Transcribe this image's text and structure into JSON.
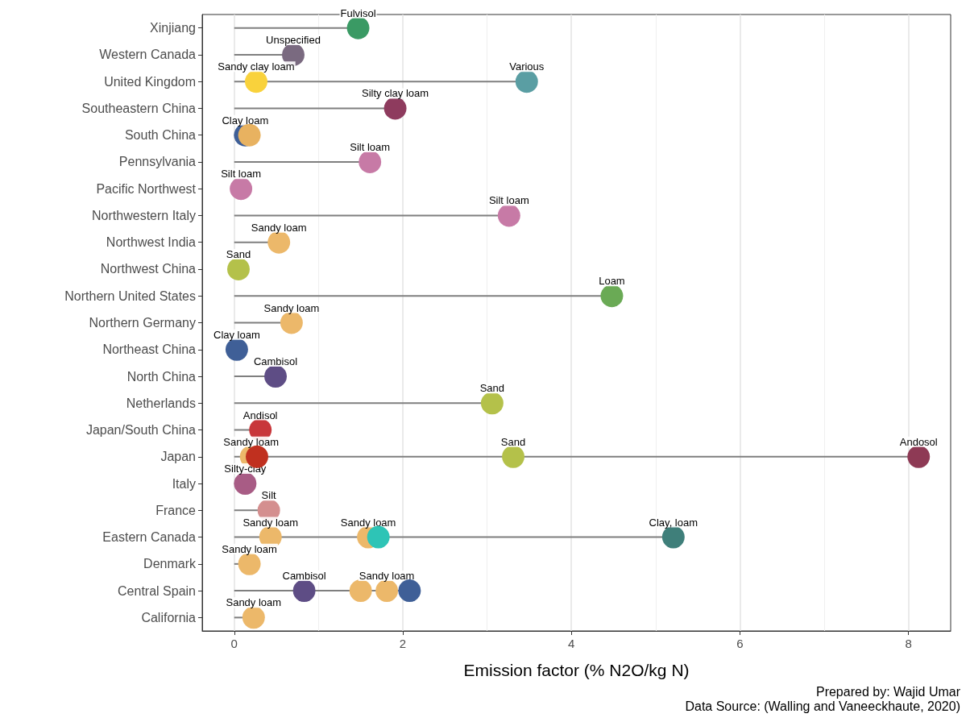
{
  "chart_data": {
    "type": "lollipop",
    "orientation": "horizontal",
    "xlabel": "Emission factor (% N2O/kg N)",
    "categories": [
      "Xinjiang",
      "Western Canada",
      "United Kingdom",
      "Southeastern China",
      "South China",
      "Pennsylvania",
      "Pacific Northwest",
      "Northwestern Italy",
      "Northwest India",
      "Northwest China",
      "Northern United States",
      "Northern Germany",
      "Northeast China",
      "North China",
      "Netherlands",
      "Japan/South China",
      "Japan",
      "Italy",
      "France",
      "Eastern Canada",
      "Denmark",
      "Central Spain",
      "California"
    ],
    "series": [
      {
        "values": [
          1.47,
          0.7,
          0.26,
          1.91,
          0.13,
          1.61,
          0.08,
          3.26,
          0.53,
          0.05,
          4.48,
          0.68,
          0.03,
          0.49,
          3.06,
          0.31,
          0.2,
          0.13,
          0.41,
          0.43,
          0.18,
          0.83,
          0.23
        ],
        "colors": [
          "#3a9a64",
          "#7a6a80",
          "#f9d23c",
          "#8e3b5e",
          "#3f5f97",
          "#c77aa6",
          "#c77aa6",
          "#c77aa6",
          "#ecb86a",
          "#b4c14a",
          "#6aaa55",
          "#ecb86a",
          "#3f5f97",
          "#5e4d85",
          "#b4c14a",
          "#c8373b",
          "#ecb86a",
          "#a85c85",
          "#d48f8f",
          "#ecb86a",
          "#ecb86a",
          "#5e4d85",
          "#ecb86a"
        ],
        "value_labels": [
          "Fulvisol",
          "Unspecified",
          "Sandy clay loam",
          "Silty clay loam",
          "Clay loam",
          "Silt loam",
          "Silt loam",
          "Silt loam",
          "Sandy loam",
          "Sand",
          "Loam",
          "Sandy loam",
          "Clay loam",
          "Cambisol",
          "Sand",
          "Andisol",
          "Sandy loam",
          "Silty-clay",
          "Silt",
          "Sandy loam",
          "Sandy loam",
          "Cambisol",
          "Sandy loam"
        ]
      },
      {
        "values": [
          null,
          null,
          3.47,
          null,
          0.18,
          null,
          null,
          null,
          null,
          null,
          null,
          null,
          null,
          null,
          null,
          null,
          0.27,
          null,
          null,
          1.59,
          null,
          1.5,
          null
        ],
        "colors": [
          null,
          null,
          "#5a9ea3",
          null,
          "#e8b260",
          null,
          null,
          null,
          null,
          null,
          null,
          null,
          null,
          null,
          null,
          null,
          "#c0301f",
          null,
          null,
          "#ecb86a",
          null,
          "#ecb86a",
          null
        ],
        "value_labels": [
          null,
          null,
          "Various",
          null,
          null,
          null,
          null,
          null,
          null,
          null,
          null,
          null,
          null,
          null,
          null,
          null,
          null,
          null,
          null,
          "Sandy loam",
          null,
          null,
          null
        ]
      },
      {
        "values": [
          null,
          null,
          null,
          null,
          null,
          null,
          null,
          null,
          null,
          null,
          null,
          null,
          null,
          null,
          null,
          null,
          3.31,
          null,
          null,
          1.71,
          null,
          1.81,
          null
        ],
        "colors": [
          null,
          null,
          null,
          null,
          null,
          null,
          null,
          null,
          null,
          null,
          null,
          null,
          null,
          null,
          null,
          null,
          "#b4c14a",
          null,
          null,
          "#2ec4b6",
          null,
          "#ecb86a",
          null
        ],
        "value_labels": [
          null,
          null,
          null,
          null,
          null,
          null,
          null,
          null,
          null,
          null,
          null,
          null,
          null,
          null,
          null,
          null,
          "Sand",
          null,
          null,
          null,
          null,
          "Sandy loam",
          null
        ]
      },
      {
        "values": [
          null,
          null,
          null,
          null,
          null,
          null,
          null,
          null,
          null,
          null,
          null,
          null,
          null,
          null,
          null,
          null,
          8.12,
          null,
          null,
          5.21,
          null,
          2.08,
          null
        ],
        "colors": [
          null,
          null,
          null,
          null,
          null,
          null,
          null,
          null,
          null,
          null,
          null,
          null,
          null,
          null,
          null,
          null,
          "#8e3a55",
          null,
          null,
          "#3f7f7a",
          null,
          "#3f5f97",
          null
        ],
        "value_labels": [
          null,
          null,
          null,
          null,
          null,
          null,
          null,
          null,
          null,
          null,
          null,
          null,
          null,
          null,
          null,
          null,
          "Andosol",
          null,
          null,
          "Clay, loam",
          null,
          null,
          null
        ]
      }
    ],
    "xlim": [
      -0.38,
      8.5
    ],
    "xticks": [
      0,
      2,
      4,
      6,
      8
    ],
    "grid": "x",
    "marker": "circle",
    "annotations": [
      "Prepared by: Wajid Umar",
      "Data Source: (Walling and Vaneeckhaute, 2020)"
    ]
  }
}
